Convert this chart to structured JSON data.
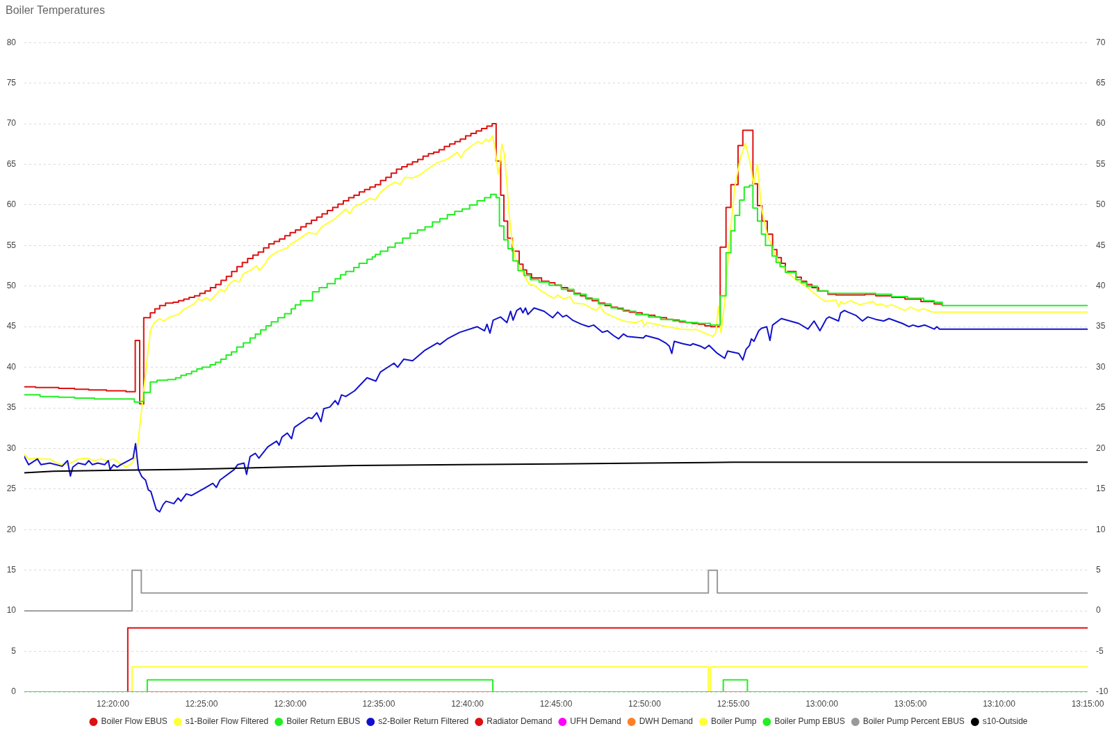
{
  "chart_data": {
    "type": "line",
    "title": "Boiler Temperatures",
    "xlim": [
      12.25,
      13.25
    ],
    "xticks": [
      {
        "value": 12.3333,
        "label": "12:20:00"
      },
      {
        "value": 12.4167,
        "label": "12:25:00"
      },
      {
        "value": 12.5,
        "label": "12:30:00"
      },
      {
        "value": 12.5833,
        "label": "12:35:00"
      },
      {
        "value": 12.6667,
        "label": "12:40:00"
      },
      {
        "value": 12.75,
        "label": "12:45:00"
      },
      {
        "value": 12.8333,
        "label": "12:50:00"
      },
      {
        "value": 12.9167,
        "label": "12:55:00"
      },
      {
        "value": 13.0,
        "label": "13:00:00"
      },
      {
        "value": 13.0833,
        "label": "13:05:00"
      },
      {
        "value": 13.1667,
        "label": "13:10:00"
      },
      {
        "value": 13.25,
        "label": "13:15:00"
      }
    ],
    "ylim": [
      0,
      80
    ],
    "yticks": [
      0,
      5,
      10,
      15,
      20,
      25,
      30,
      35,
      40,
      45,
      50,
      55,
      60,
      65,
      70,
      75,
      80
    ],
    "y2lim": [
      -10,
      70
    ],
    "y2ticks": [
      -10,
      -5,
      0,
      5,
      10,
      15,
      20,
      25,
      30,
      35,
      40,
      45,
      50,
      55,
      60,
      65,
      70
    ],
    "grid": "y",
    "legend": "bottom",
    "marker": "none",
    "series": [
      {
        "name": "Boiler Flow EBUS",
        "type": "step",
        "color": "#dd1111",
        "x": [
          12.25,
          12.2606,
          12.2823,
          12.2973,
          12.3106,
          12.3273,
          12.3456,
          12.3543,
          12.3585,
          12.3623,
          12.3685,
          12.3728,
          12.3773,
          12.3828,
          12.39,
          12.395,
          12.4,
          12.405,
          12.41,
          12.415,
          12.42,
          12.425,
          12.43,
          12.435,
          12.44,
          12.445,
          12.45,
          12.455,
          12.46,
          12.465,
          12.47,
          12.475,
          12.48,
          12.485,
          12.49,
          12.495,
          12.5,
          12.505,
          12.51,
          12.515,
          12.52,
          12.525,
          12.53,
          12.535,
          12.54,
          12.545,
          12.55,
          12.555,
          12.56,
          12.565,
          12.57,
          12.575,
          12.58,
          12.585,
          12.59,
          12.595,
          12.6,
          12.605,
          12.61,
          12.615,
          12.62,
          12.625,
          12.63,
          12.635,
          12.64,
          12.645,
          12.65,
          12.655,
          12.66,
          12.665,
          12.67,
          12.675,
          12.68,
          12.685,
          12.69,
          12.6937,
          12.698,
          12.701,
          12.7045,
          12.709,
          12.7154,
          12.719,
          12.7224,
          12.727,
          12.7364,
          12.7434,
          12.749,
          12.755,
          12.761,
          12.767,
          12.773,
          12.778,
          12.784,
          12.79,
          12.796,
          12.802,
          12.808,
          12.813,
          12.819,
          12.825,
          12.831,
          12.837,
          12.843,
          12.848,
          12.854,
          12.86,
          12.866,
          12.872,
          12.878,
          12.884,
          12.89,
          12.8957,
          12.9044,
          12.9099,
          12.9145,
          12.9212,
          12.9257,
          12.9352,
          12.9395,
          12.9437,
          12.9487,
          12.9537,
          12.9577,
          12.9619,
          12.9657,
          12.9757,
          12.9807,
          12.9857,
          12.9907,
          12.9969,
          13.0057,
          13.0132,
          13.0407,
          13.0507,
          13.0657,
          13.0782,
          13.0932,
          13.1057,
          13.1132
        ],
        "values": [
          37.6,
          37.5,
          37.4,
          37.3,
          37.2,
          37.1,
          37.0,
          43.3,
          35.5,
          46.1,
          46.7,
          47.2,
          47.6,
          47.9,
          48.0,
          48.2,
          48.4,
          48.6,
          48.8,
          49.1,
          49.4,
          49.8,
          50.2,
          50.7,
          51.2,
          51.8,
          52.4,
          52.9,
          53.4,
          53.8,
          54.2,
          54.7,
          55.2,
          55.5,
          55.8,
          56.2,
          56.6,
          56.9,
          57.3,
          57.7,
          58.1,
          58.5,
          58.9,
          59.3,
          59.7,
          60.1,
          60.5,
          60.9,
          61.2,
          61.6,
          61.9,
          62.2,
          62.5,
          63.0,
          63.4,
          63.9,
          64.4,
          64.7,
          65.0,
          65.3,
          65.6,
          66.0,
          66.3,
          66.5,
          66.8,
          67.2,
          67.5,
          67.8,
          68.1,
          68.5,
          68.8,
          69.1,
          69.4,
          69.7,
          70.0,
          65.4,
          61.2,
          58.0,
          55.9,
          54.3,
          52.7,
          52.0,
          51.5,
          51.0,
          50.6,
          50.4,
          50.1,
          49.8,
          49.4,
          49.1,
          48.8,
          48.5,
          48.2,
          47.9,
          47.6,
          47.4,
          47.2,
          47.0,
          46.8,
          46.7,
          46.5,
          46.4,
          46.2,
          46.1,
          45.9,
          45.8,
          45.6,
          45.5,
          45.4,
          45.3,
          45.1,
          45.0,
          54.8,
          59.7,
          62.5,
          67.3,
          69.2,
          62.6,
          59.9,
          58.0,
          56.4,
          54.5,
          53.5,
          52.8,
          51.8,
          51.1,
          50.6,
          50.2,
          49.8,
          49.4,
          49.0,
          48.9,
          49.0,
          48.8,
          48.6,
          48.4,
          48.1,
          47.8,
          47.6
        ]
      },
      {
        "name": "s1-Boiler Flow Filtered",
        "type": "line",
        "color": "#ffff33",
        "x": [
          12.25,
          12.254,
          12.2606,
          12.2673,
          12.274,
          12.2806,
          12.2856,
          12.294,
          12.3006,
          12.309,
          12.3156,
          12.3223,
          12.3273,
          12.334,
          12.3406,
          12.3456,
          12.3506,
          12.3556,
          12.3685,
          12.3723,
          12.3773,
          12.381,
          12.3873,
          12.3948,
          12.3998,
          12.4098,
          12.4135,
          12.4173,
          12.421,
          12.4248,
          12.4298,
          12.4348,
          12.4385,
          12.4423,
          12.4473,
          12.4523,
          12.456,
          12.4635,
          12.4685,
          12.471,
          12.4773,
          12.4798,
          12.4873,
          12.4973,
          12.4998,
          12.5073,
          12.5173,
          12.5248,
          12.5298,
          12.5373,
          12.5423,
          12.5473,
          12.5523,
          12.556,
          12.5598,
          12.5673,
          12.5748,
          12.5798,
          12.5848,
          12.5918,
          12.5988,
          12.6034,
          12.6081,
          12.6151,
          12.6221,
          12.6291,
          12.6384,
          12.6454,
          12.6501,
          12.6571,
          12.6606,
          12.6641,
          12.6699,
          12.6734,
          12.6769,
          12.6804,
          12.6839,
          12.687,
          12.6902,
          12.6925,
          12.6956,
          12.6968,
          12.6991,
          12.7014,
          12.7038,
          12.7061,
          12.7089,
          12.7119,
          12.7154,
          12.7201,
          12.7248,
          12.7294,
          12.7341,
          12.7434,
          12.7481,
          12.7516,
          12.7574,
          12.7633,
          12.7668,
          12.7761,
          12.7831,
          12.7878,
          12.7913,
          12.796,
          12.8041,
          12.8134,
          12.8181,
          12.8251,
          12.8309,
          12.8332,
          12.8356,
          12.8438,
          12.8554,
          12.8671,
          12.8788,
          12.8811,
          12.8881,
          12.8974,
          12.9002,
          12.9027,
          12.9052,
          12.9082,
          12.9132,
          12.9182,
          12.9232,
          12.9282,
          12.9332,
          12.9357,
          12.9394,
          12.9432,
          12.9482,
          12.9544,
          12.9607,
          12.9682,
          12.9757,
          12.9857,
          12.9957,
          13.0032,
          13.0132,
          13.0157,
          13.0182,
          13.0207,
          13.0269,
          13.0357,
          13.0482,
          13.0507,
          13.0557,
          13.0607,
          13.0657,
          13.0782,
          13.0832,
          13.0907,
          13.0957,
          13.1044,
          13.25
        ],
        "values": [
          29.3,
          28.7,
          28.8,
          28.7,
          28.7,
          28.2,
          28.0,
          28.2,
          28.7,
          28.8,
          28.5,
          28.7,
          28.5,
          28.7,
          28.1,
          27.7,
          28.1,
          29.2,
          44.5,
          45.5,
          46.0,
          45.7,
          46.2,
          46.5,
          47.1,
          47.8,
          48.4,
          48.2,
          48.6,
          48.2,
          48.9,
          49.6,
          49.3,
          50.2,
          50.7,
          50.5,
          51.5,
          52.0,
          52.5,
          51.9,
          52.9,
          53.5,
          54.2,
          54.7,
          55.1,
          55.7,
          56.6,
          56.4,
          57.3,
          57.9,
          58.3,
          58.9,
          59.5,
          58.9,
          59.7,
          60.2,
          60.8,
          60.6,
          61.5,
          62.3,
          62.8,
          62.5,
          63.4,
          63.3,
          63.7,
          64.4,
          65.2,
          65.5,
          65.8,
          66.5,
          65.8,
          66.6,
          67.2,
          67.5,
          67.8,
          67.5,
          68.1,
          67.8,
          68.5,
          67.2,
          63.8,
          64.6,
          67.5,
          66.3,
          62.6,
          58.6,
          55.3,
          53.4,
          52.5,
          51.3,
          50.2,
          50.1,
          49.6,
          48.8,
          48.5,
          48.9,
          48.4,
          48.7,
          47.9,
          47.8,
          47.3,
          47.0,
          47.5,
          46.7,
          46.2,
          45.7,
          45.6,
          45.5,
          45.8,
          45.1,
          45.5,
          45.3,
          45.0,
          44.7,
          44.6,
          44.7,
          44.3,
          43.8,
          44.2,
          47.5,
          44.2,
          47.5,
          55.7,
          62.2,
          65.7,
          67.6,
          64.8,
          62.5,
          65.0,
          59.6,
          56.6,
          54.4,
          52.7,
          51.6,
          50.8,
          49.9,
          48.8,
          48.1,
          48.3,
          47.5,
          48.1,
          47.8,
          48.2,
          47.7,
          48.1,
          47.7,
          47.8,
          47.5,
          47.7,
          47.0,
          47.4,
          47.0,
          47.2,
          46.8,
          46.8
        ]
      },
      {
        "name": "Boiler Return EBUS",
        "type": "step",
        "color": "#22ee22",
        "x": [
          12.25,
          12.2648,
          12.2823,
          12.2973,
          12.316,
          12.3535,
          12.3585,
          12.3623,
          12.3685,
          12.3748,
          12.3848,
          12.3923,
          12.3973,
          12.4023,
          12.4073,
          12.4123,
          12.4173,
          12.4248,
          12.4298,
          12.4348,
          12.4398,
          12.4448,
          12.4498,
          12.456,
          12.4623,
          12.4673,
          12.4723,
          12.4773,
          12.4823,
          12.4885,
          12.4948,
          12.501,
          12.5048,
          12.5098,
          12.521,
          12.5273,
          12.5348,
          12.5423,
          12.5473,
          12.5523,
          12.5598,
          12.5648,
          12.5723,
          12.5773,
          12.5801,
          12.5848,
          12.5918,
          12.5988,
          12.6058,
          12.6128,
          12.6198,
          12.6268,
          12.6338,
          12.6408,
          12.6478,
          12.6548,
          12.6618,
          12.6688,
          12.6758,
          12.6828,
          12.6886,
          12.6937,
          12.6968,
          12.701,
          12.7049,
          12.7096,
          12.7143,
          12.7201,
          12.7259,
          12.7341,
          12.7434,
          12.7551,
          12.7668,
          12.7784,
          12.7901,
          12.8018,
          12.8134,
          12.825,
          12.8368,
          12.8484,
          12.86,
          12.8718,
          12.8834,
          12.8951,
          12.9044,
          12.9099,
          12.9145,
          12.9182,
          12.9227,
          12.927,
          12.932,
          12.9352,
          12.9395,
          12.9432,
          12.947,
          12.9532,
          12.957,
          12.9607,
          12.9657,
          12.9757,
          12.9807,
          12.9857,
          12.9957,
          13.0057,
          13.0507,
          13.0657,
          13.0807,
          13.0957,
          13.1057,
          13.1132,
          13.25
        ],
        "values": [
          36.6,
          36.4,
          36.3,
          36.2,
          36.1,
          35.7,
          35.8,
          36.9,
          38.2,
          38.4,
          38.5,
          38.7,
          39.0,
          39.2,
          39.5,
          39.8,
          40.0,
          40.3,
          40.6,
          41.0,
          41.5,
          41.9,
          42.5,
          43.0,
          43.6,
          44.1,
          44.6,
          45.1,
          45.6,
          46.1,
          46.6,
          47.2,
          47.7,
          48.2,
          49.3,
          49.8,
          50.3,
          50.9,
          51.4,
          51.8,
          52.3,
          52.8,
          53.3,
          53.6,
          53.9,
          54.3,
          54.8,
          55.3,
          55.9,
          56.5,
          56.9,
          57.3,
          57.9,
          58.3,
          58.8,
          59.2,
          59.5,
          60.0,
          60.5,
          60.9,
          61.3,
          60.9,
          57.4,
          55.7,
          54.6,
          53.1,
          51.9,
          51.3,
          50.8,
          50.5,
          50.1,
          49.6,
          49.0,
          48.4,
          47.8,
          47.3,
          46.9,
          46.5,
          46.2,
          45.9,
          45.7,
          45.5,
          45.4,
          45.2,
          48.8,
          54.1,
          56.8,
          58.7,
          60.6,
          62.2,
          62.4,
          59.6,
          58.0,
          56.4,
          55.0,
          53.7,
          52.9,
          52.4,
          51.7,
          50.8,
          50.4,
          50.0,
          49.4,
          49.1,
          49.0,
          48.7,
          48.5,
          48.2,
          48.0,
          47.6,
          47.6
        ]
      },
      {
        "name": "s2-Boiler Return Filtered",
        "type": "line",
        "color": "#1111cc",
        "x": [
          12.25,
          12.254,
          12.2623,
          12.2656,
          12.274,
          12.2856,
          12.2906,
          12.2933,
          12.2956,
          12.3006,
          12.3073,
          12.3106,
          12.314,
          12.319,
          12.3256,
          12.329,
          12.3306,
          12.334,
          12.3373,
          12.3406,
          12.3523,
          12.3546,
          12.3573,
          12.3606,
          12.364,
          12.3666,
          12.369,
          12.374,
          12.3773,
          12.3806,
          12.3833,
          12.3906,
          12.3946,
          12.3973,
          12.4023,
          12.4073,
          12.4206,
          12.4273,
          12.4306,
          12.434,
          12.4473,
          12.4506,
          12.4566,
          12.459,
          12.4623,
          12.4673,
          12.4706,
          12.479,
          12.4873,
          12.4896,
          12.4923,
          12.4973,
          12.5013,
          12.504,
          12.5173,
          12.5206,
          12.525,
          12.529,
          12.5316,
          12.5373,
          12.5423,
          12.545,
          12.5483,
          12.5523,
          12.5606,
          12.5723,
          12.5806,
          12.5848,
          12.5976,
          12.6011,
          12.6069,
          12.6151,
          12.6268,
          12.6384,
          12.6408,
          12.6478,
          12.6594,
          12.6758,
          12.6828,
          12.6851,
          12.6879,
          12.6909,
          12.6979,
          12.7038,
          12.7073,
          12.7096,
          12.7131,
          12.7166,
          12.7189,
          12.7213,
          12.7236,
          12.7294,
          12.7388,
          12.7469,
          12.7516,
          12.7563,
          12.7598,
          12.7656,
          12.7738,
          12.7808,
          12.7854,
          12.7936,
          12.7983,
          12.8041,
          12.8088,
          12.8134,
          12.8169,
          12.8321,
          12.8344,
          12.8461,
          12.8531,
          12.8566,
          12.8589,
          12.8612,
          12.8694,
          12.8764,
          12.8788,
          12.8858,
          12.8899,
          12.8939,
          12.9009,
          12.9086,
          12.9114,
          12.9219,
          12.9257,
          12.9287,
          12.932,
          12.9337,
          12.9362,
          12.9407,
          12.9432,
          12.9482,
          12.9512,
          12.9537,
          12.9619,
          12.9782,
          12.987,
          12.9927,
          12.9982,
          13.0044,
          13.0069,
          13.0157,
          13.0177,
          13.0212,
          13.0244,
          13.0319,
          13.0382,
          13.0432,
          13.0507,
          13.0582,
          13.0632,
          13.0757,
          13.0819,
          13.0857,
          13.0907,
          13.0969,
          13.1057,
          13.1082,
          13.1107,
          13.25
        ],
        "values": [
          29.0,
          28.0,
          28.7,
          28.0,
          28.2,
          27.8,
          28.5,
          26.6,
          27.7,
          28.2,
          28.0,
          28.5,
          28.0,
          28.2,
          28.0,
          28.5,
          27.4,
          28.0,
          27.7,
          28.0,
          28.8,
          30.6,
          27.4,
          26.5,
          26.1,
          24.9,
          24.7,
          22.5,
          22.2,
          23.1,
          23.5,
          23.2,
          23.9,
          23.5,
          24.4,
          24.2,
          25.2,
          25.7,
          25.2,
          26.1,
          27.4,
          28.0,
          28.2,
          26.8,
          29.0,
          29.4,
          28.8,
          30.2,
          30.9,
          30.4,
          31.4,
          31.9,
          31.2,
          32.6,
          33.8,
          33.7,
          34.4,
          33.3,
          34.9,
          35.1,
          35.9,
          35.4,
          36.6,
          36.4,
          37.1,
          38.7,
          38.3,
          39.4,
          40.5,
          40.0,
          41.0,
          40.8,
          42.1,
          43.0,
          42.8,
          43.5,
          44.3,
          45.0,
          44.5,
          45.3,
          44.2,
          45.8,
          46.2,
          45.5,
          46.9,
          45.8,
          47.0,
          47.3,
          46.7,
          47.3,
          46.5,
          47.3,
          46.9,
          46.1,
          46.8,
          46.2,
          46.4,
          45.8,
          45.3,
          45.0,
          45.2,
          44.3,
          44.5,
          43.9,
          43.5,
          44.1,
          43.8,
          43.6,
          43.9,
          43.5,
          43.0,
          42.6,
          41.7,
          43.2,
          42.9,
          42.7,
          42.9,
          42.6,
          42.3,
          42.7,
          41.8,
          41.1,
          42.0,
          41.7,
          40.9,
          42.2,
          42.7,
          43.5,
          43.2,
          44.5,
          44.8,
          45.0,
          43.3,
          45.2,
          46.0,
          45.4,
          44.7,
          45.7,
          44.5,
          46.0,
          46.2,
          45.7,
          46.7,
          47.0,
          46.8,
          46.4,
          45.7,
          46.2,
          45.9,
          45.7,
          46.0,
          45.4,
          45.0,
          45.2,
          45.0,
          45.2,
          44.7,
          45.0,
          44.7,
          44.7
        ]
      },
      {
        "name": "Radiator Demand",
        "type": "step",
        "color": "#dd1111",
        "x": [
          12.3473,
          12.3473,
          13.25
        ],
        "values": [
          0,
          7.9,
          7.9
        ]
      },
      {
        "name": "UFH Demand",
        "type": "step",
        "color": "#ff00ff"
      },
      {
        "name": "DWH Demand",
        "type": "step",
        "color": "#ff7f27",
        "x": [
          12.3656,
          12.6906,
          12.8,
          12.9073,
          12.93
        ],
        "values": [
          0,
          0,
          null,
          0,
          0
        ]
      },
      {
        "name": "Boiler Pump",
        "type": "step",
        "color": "#ffff33",
        "x": [
          12.3513,
          12.3513,
          12.8933,
          12.8953,
          13.25
        ],
        "values": [
          0,
          3.1,
          0,
          3.1,
          3.1
        ]
      },
      {
        "name": "Boiler Pump EBUS",
        "type": "step",
        "color": "#22ee22",
        "x": [
          12.25,
          12.3656,
          12.6906,
          12.9073,
          12.93,
          13.25
        ],
        "values": [
          0,
          1.5,
          0,
          1.5,
          0,
          0
        ]
      },
      {
        "name": "Boiler Pump Percent EBUS",
        "type": "step",
        "color": "#999999",
        "axis": "y2",
        "x": [
          12.25,
          12.3513,
          12.36,
          12.8933,
          12.9017,
          13.25
        ],
        "values": [
          0,
          5,
          2.2,
          5,
          2.2,
          2.2
        ]
      },
      {
        "name": "s10-Outside",
        "type": "line",
        "color": "#000000",
        "x": [
          12.25,
          12.2773,
          12.3273,
          12.394,
          12.4273,
          12.494,
          12.5607,
          12.6607,
          12.75,
          12.8333,
          12.9167,
          13.25
        ],
        "values": [
          27.0,
          27.2,
          27.3,
          27.4,
          27.5,
          27.7,
          27.9,
          28.0,
          28.1,
          28.2,
          28.3,
          28.3
        ]
      }
    ]
  }
}
